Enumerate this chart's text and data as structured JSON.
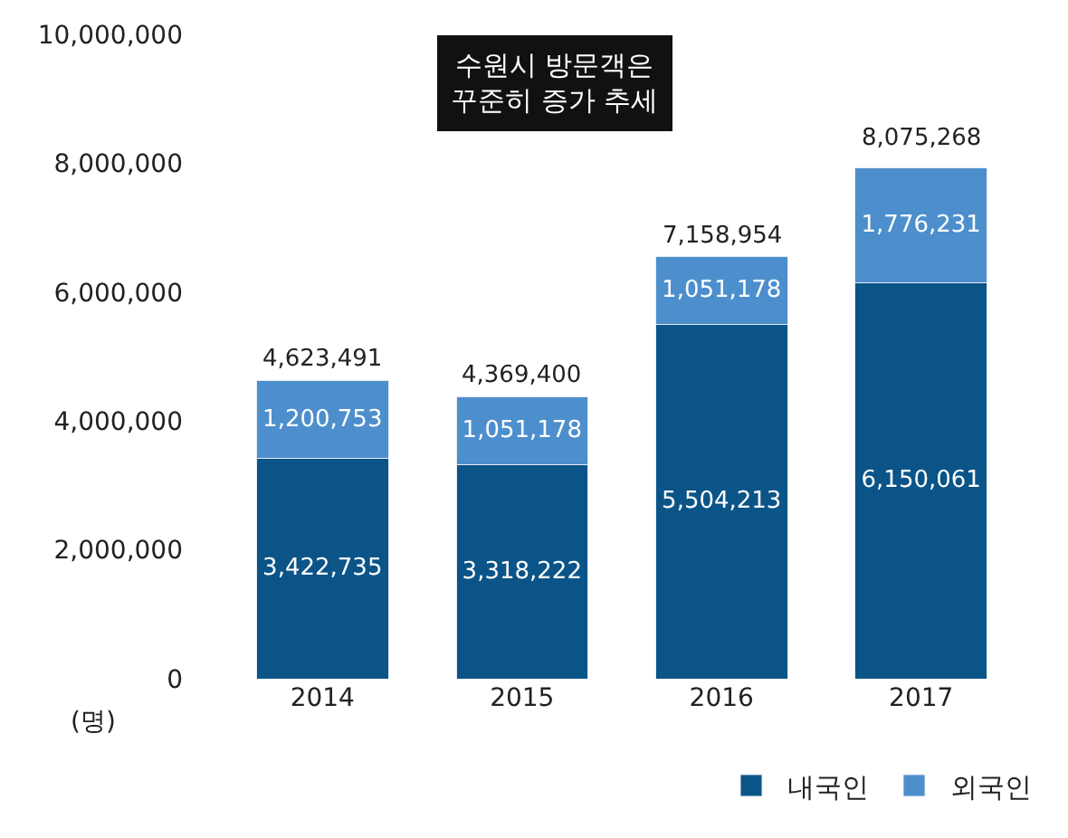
{
  "chart_data": {
    "type": "bar",
    "stacked": true,
    "ylabel": "(명)",
    "categories": [
      "2014",
      "2015",
      "2016",
      "2017"
    ],
    "series": [
      {
        "name": "내국인",
        "color": "#0b5488",
        "values": [
          3422735,
          3318222,
          5504213,
          6150061
        ],
        "value_labels": [
          "3,422,735",
          "3,318,222",
          "5,504,213",
          "6,150,061"
        ]
      },
      {
        "name": "외국인",
        "color": "#4d8fcc",
        "values": [
          1200753,
          1051178,
          1051178,
          1776231
        ],
        "value_labels": [
          "1,200,753",
          "1,051,178",
          "1,051,178",
          "1,776,231"
        ]
      }
    ],
    "annotations": [
      "수원시 방문객은\n꾸준히 증가 추세",
      {
        "text": "4,623,491",
        "x": "2014",
        "y": 4623491
      },
      {
        "text": "4,369,400",
        "x": "2015",
        "y": 4369400
      },
      {
        "text": "7,158,954",
        "x": "2016",
        "y": 6555391
      },
      {
        "text": "8,075,268",
        "x": "2017",
        "y": 8075268
      }
    ],
    "ylim": [
      0,
      10000000
    ],
    "yticks": [
      {
        "value": 0,
        "label": "0"
      },
      {
        "value": 2000000,
        "label": "2,000,000"
      },
      {
        "value": 4000000,
        "label": "4,000,000"
      },
      {
        "value": 6000000,
        "label": "6,000,000"
      },
      {
        "value": 8000000,
        "label": "8,000,000"
      },
      {
        "value": 10000000,
        "label": "10,000,000"
      }
    ],
    "legend": "bottom right"
  }
}
